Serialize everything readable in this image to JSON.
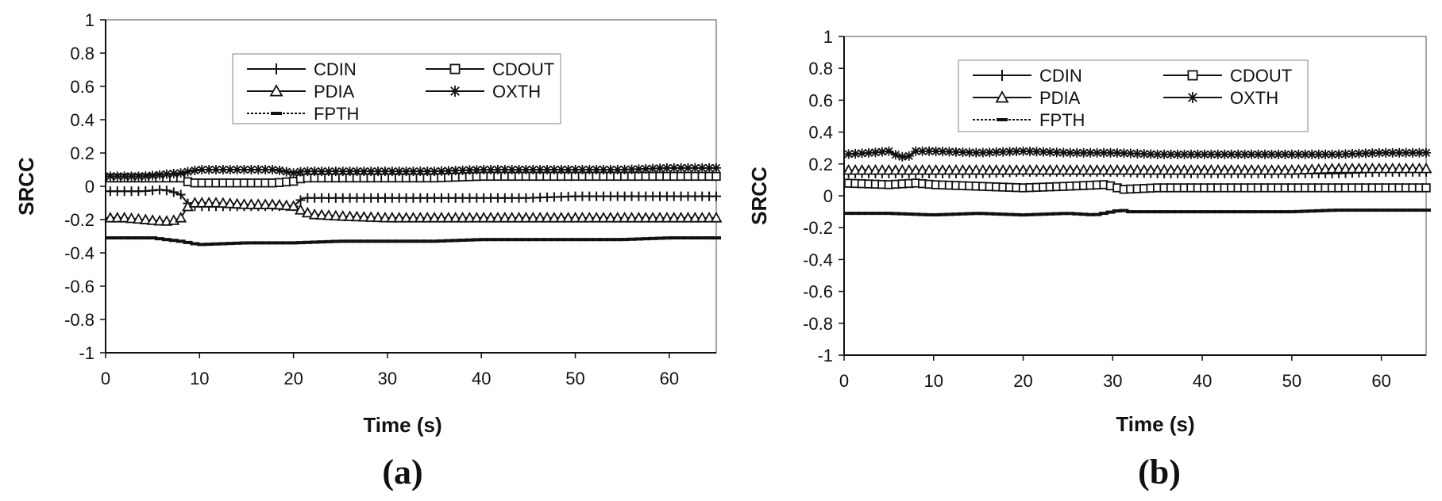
{
  "chart_data": [
    {
      "type": "line",
      "panel_label": "(a)",
      "xlabel": "Time (s)",
      "ylabel": "SRCC",
      "xlim": [
        0,
        65
      ],
      "ylim": [
        -1,
        1
      ],
      "xticks": [
        "0",
        "10",
        "20",
        "30",
        "40",
        "50",
        "60"
      ],
      "yticks": [
        "1",
        "0.8",
        "0.6",
        "0.4",
        "0.2",
        "0",
        "-0.2",
        "-0.4",
        "-0.6",
        "-0.8",
        "-1"
      ],
      "grid": false,
      "legend_position": "top-center",
      "series": [
        {
          "name": "CDIN",
          "marker": "plus",
          "x": [
            0,
            2,
            4,
            6,
            7,
            8,
            9,
            10,
            12,
            15,
            18,
            20,
            21,
            25,
            30,
            35,
            40,
            45,
            50,
            55,
            60,
            65
          ],
          "y": [
            -0.03,
            -0.03,
            -0.03,
            -0.02,
            -0.03,
            -0.05,
            -0.12,
            -0.12,
            -0.12,
            -0.12,
            -0.12,
            -0.12,
            -0.07,
            -0.07,
            -0.07,
            -0.07,
            -0.07,
            -0.07,
            -0.06,
            -0.06,
            -0.06,
            -0.06
          ]
        },
        {
          "name": "CDOUT",
          "marker": "square",
          "x": [
            0,
            2,
            4,
            6,
            8,
            9,
            10,
            12,
            15,
            18,
            20,
            21,
            25,
            30,
            35,
            40,
            45,
            50,
            55,
            60,
            65
          ],
          "y": [
            0.05,
            0.05,
            0.05,
            0.05,
            0.05,
            0.02,
            0.02,
            0.02,
            0.02,
            0.02,
            0.03,
            0.05,
            0.05,
            0.05,
            0.05,
            0.06,
            0.06,
            0.06,
            0.06,
            0.06,
            0.06
          ]
        },
        {
          "name": "PDIA",
          "marker": "triangle",
          "x": [
            0,
            2,
            4,
            6,
            7,
            8,
            9,
            10,
            12,
            15,
            18,
            20,
            21,
            22,
            25,
            30,
            35,
            40,
            45,
            50,
            55,
            60,
            65
          ],
          "y": [
            -0.19,
            -0.19,
            -0.2,
            -0.21,
            -0.21,
            -0.19,
            -0.1,
            -0.1,
            -0.1,
            -0.11,
            -0.11,
            -0.12,
            -0.15,
            -0.17,
            -0.18,
            -0.19,
            -0.19,
            -0.19,
            -0.19,
            -0.19,
            -0.19,
            -0.19,
            -0.19
          ]
        },
        {
          "name": "OXTH",
          "marker": "asterisk",
          "x": [
            0,
            2,
            4,
            6,
            8,
            9,
            10,
            12,
            15,
            18,
            20,
            21,
            25,
            30,
            35,
            40,
            45,
            50,
            55,
            60,
            65
          ],
          "y": [
            0.06,
            0.06,
            0.06,
            0.07,
            0.08,
            0.09,
            0.1,
            0.1,
            0.1,
            0.1,
            0.08,
            0.09,
            0.09,
            0.09,
            0.09,
            0.1,
            0.1,
            0.1,
            0.1,
            0.11,
            0.11
          ]
        },
        {
          "name": "FPTH",
          "marker": "dash",
          "x": [
            0,
            5,
            8,
            9,
            10,
            15,
            20,
            25,
            30,
            35,
            40,
            45,
            50,
            55,
            60,
            65
          ],
          "y": [
            -0.31,
            -0.31,
            -0.33,
            -0.34,
            -0.35,
            -0.34,
            -0.34,
            -0.33,
            -0.33,
            -0.33,
            -0.32,
            -0.32,
            -0.32,
            -0.32,
            -0.31,
            -0.31
          ]
        }
      ]
    },
    {
      "type": "line",
      "panel_label": "(b)",
      "xlabel": "Time (s)",
      "ylabel": "SRCC",
      "xlim": [
        0,
        65
      ],
      "ylim": [
        -1,
        1
      ],
      "xticks": [
        "0",
        "10",
        "20",
        "30",
        "40",
        "50",
        "60"
      ],
      "yticks": [
        "1",
        "0.8",
        "0.6",
        "0.4",
        "0.2",
        "0",
        "-0.2",
        "-0.4",
        "-0.6",
        "-0.8",
        "-1"
      ],
      "grid": false,
      "legend_position": "top-center",
      "series": [
        {
          "name": "CDIN",
          "marker": "plus",
          "x": [
            0,
            5,
            10,
            15,
            20,
            25,
            30,
            35,
            40,
            45,
            50,
            55,
            60,
            65
          ],
          "y": [
            0.14,
            0.14,
            0.14,
            0.14,
            0.15,
            0.15,
            0.15,
            0.14,
            0.14,
            0.14,
            0.14,
            0.14,
            0.15,
            0.15
          ]
        },
        {
          "name": "CDOUT",
          "marker": "square",
          "x": [
            0,
            5,
            8,
            10,
            15,
            20,
            25,
            29,
            30,
            31,
            35,
            40,
            45,
            50,
            55,
            60,
            65
          ],
          "y": [
            0.08,
            0.07,
            0.08,
            0.07,
            0.06,
            0.05,
            0.06,
            0.07,
            0.06,
            0.04,
            0.05,
            0.05,
            0.05,
            0.05,
            0.05,
            0.05,
            0.05
          ]
        },
        {
          "name": "PDIA",
          "marker": "triangle",
          "x": [
            0,
            5,
            10,
            15,
            20,
            25,
            30,
            35,
            40,
            45,
            50,
            55,
            60,
            65
          ],
          "y": [
            0.16,
            0.16,
            0.16,
            0.16,
            0.16,
            0.16,
            0.16,
            0.16,
            0.16,
            0.16,
            0.16,
            0.17,
            0.17,
            0.17
          ]
        },
        {
          "name": "OXTH",
          "marker": "asterisk",
          "x": [
            0,
            3,
            5,
            6,
            7,
            8,
            10,
            15,
            20,
            25,
            30,
            35,
            40,
            45,
            50,
            55,
            60,
            65
          ],
          "y": [
            0.26,
            0.27,
            0.28,
            0.25,
            0.24,
            0.28,
            0.28,
            0.27,
            0.28,
            0.27,
            0.27,
            0.26,
            0.26,
            0.26,
            0.26,
            0.26,
            0.27,
            0.27
          ]
        },
        {
          "name": "FPTH",
          "marker": "dash",
          "x": [
            0,
            5,
            10,
            15,
            20,
            25,
            28,
            30,
            31,
            32,
            35,
            40,
            45,
            50,
            55,
            60,
            65
          ],
          "y": [
            -0.11,
            -0.11,
            -0.12,
            -0.11,
            -0.12,
            -0.11,
            -0.12,
            -0.1,
            -0.09,
            -0.1,
            -0.1,
            -0.1,
            -0.1,
            -0.1,
            -0.09,
            -0.09,
            -0.09
          ]
        }
      ]
    }
  ]
}
